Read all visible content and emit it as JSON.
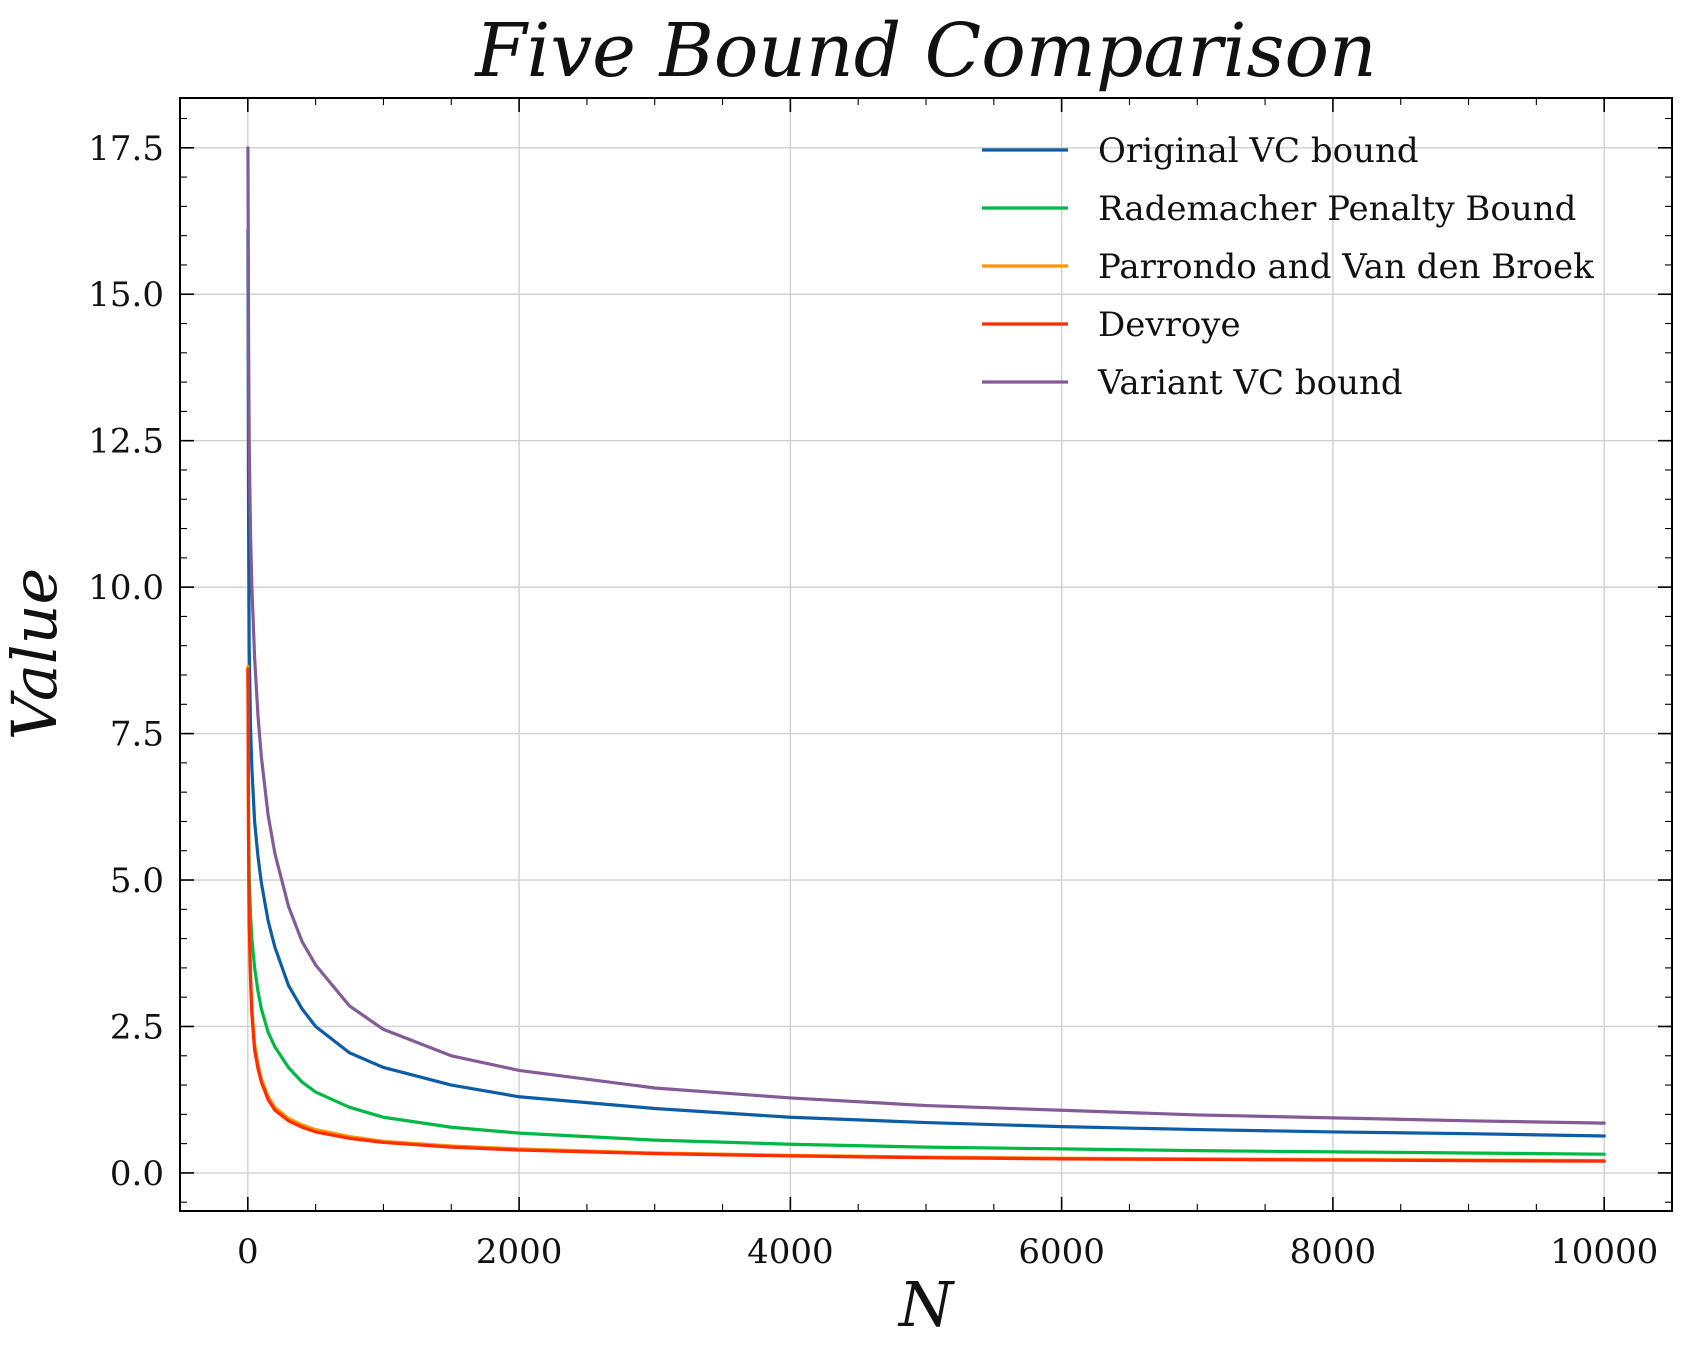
{
  "chart_data": {
    "type": "line",
    "title": "Five Bound Comparison",
    "xlabel": "N",
    "ylabel": "Value",
    "xlim": [
      -500,
      10500
    ],
    "ylim": [
      -0.65,
      18.35
    ],
    "x_ticks": [
      0,
      2000,
      4000,
      6000,
      8000,
      10000
    ],
    "x_tick_labels": [
      "0",
      "2000",
      "4000",
      "6000",
      "8000",
      "10000"
    ],
    "y_ticks": [
      0.0,
      2.5,
      5.0,
      7.5,
      10.0,
      12.5,
      15.0,
      17.5
    ],
    "y_tick_labels": [
      "0.0",
      "2.5",
      "5.0",
      "7.5",
      "10.0",
      "12.5",
      "15.0",
      "17.5"
    ],
    "grid": true,
    "legend_position": "top-right",
    "series": [
      {
        "name": "Original VC bound",
        "color": "#0C5DA5",
        "x": [
          1,
          5,
          10,
          20,
          30,
          50,
          75,
          100,
          150,
          200,
          300,
          400,
          500,
          750,
          1000,
          1500,
          2000,
          3000,
          4000,
          5000,
          6000,
          7000,
          8000,
          9000,
          10000
        ],
        "y": [
          16.1,
          11.5,
          9.0,
          7.6,
          6.9,
          6.0,
          5.4,
          4.95,
          4.3,
          3.85,
          3.2,
          2.8,
          2.5,
          2.05,
          1.8,
          1.5,
          1.3,
          1.1,
          0.95,
          0.86,
          0.79,
          0.74,
          0.7,
          0.67,
          0.63
        ]
      },
      {
        "name": "Rademacher Penalty Bound",
        "color": "#00B945",
        "x": [
          1,
          5,
          10,
          20,
          30,
          50,
          75,
          100,
          150,
          200,
          300,
          400,
          500,
          750,
          1000,
          1500,
          2000,
          3000,
          4000,
          5000,
          6000,
          7000,
          8000,
          9000,
          10000
        ],
        "y": [
          8.6,
          6.3,
          5.1,
          4.4,
          4.0,
          3.5,
          3.1,
          2.8,
          2.4,
          2.15,
          1.8,
          1.55,
          1.38,
          1.12,
          0.95,
          0.78,
          0.68,
          0.56,
          0.49,
          0.44,
          0.41,
          0.38,
          0.36,
          0.34,
          0.32
        ]
      },
      {
        "name": "Parrondo and Van den Broek",
        "color": "#FF9500",
        "x": [
          1,
          5,
          10,
          20,
          30,
          50,
          75,
          100,
          150,
          200,
          300,
          400,
          500,
          750,
          1000,
          1500,
          2000,
          3000,
          4000,
          5000,
          6000,
          7000,
          8000,
          9000,
          10000
        ],
        "y": [
          8.65,
          5.8,
          4.4,
          3.4,
          2.8,
          2.2,
          1.85,
          1.6,
          1.3,
          1.12,
          0.93,
          0.82,
          0.74,
          0.62,
          0.54,
          0.46,
          0.41,
          0.34,
          0.3,
          0.27,
          0.25,
          0.24,
          0.23,
          0.22,
          0.21
        ]
      },
      {
        "name": "Devroye",
        "color": "#FF2C00",
        "x": [
          1,
          5,
          10,
          20,
          30,
          50,
          75,
          100,
          150,
          200,
          300,
          400,
          500,
          750,
          1000,
          1500,
          2000,
          3000,
          4000,
          5000,
          6000,
          7000,
          8000,
          9000,
          10000
        ],
        "y": [
          8.6,
          5.7,
          4.3,
          3.3,
          2.7,
          2.1,
          1.78,
          1.55,
          1.25,
          1.07,
          0.89,
          0.78,
          0.7,
          0.59,
          0.52,
          0.44,
          0.39,
          0.33,
          0.29,
          0.26,
          0.24,
          0.23,
          0.22,
          0.21,
          0.2
        ]
      },
      {
        "name": "Variant VC bound",
        "color": "#845B97",
        "x": [
          1,
          5,
          10,
          20,
          30,
          50,
          75,
          100,
          150,
          200,
          300,
          400,
          500,
          750,
          1000,
          1500,
          2000,
          3000,
          4000,
          5000,
          6000,
          7000,
          8000,
          9000,
          10000
        ],
        "y": [
          17.5,
          14.5,
          12.5,
          10.9,
          10.0,
          8.8,
          7.8,
          7.1,
          6.1,
          5.45,
          4.55,
          3.95,
          3.55,
          2.85,
          2.45,
          2.0,
          1.75,
          1.45,
          1.28,
          1.15,
          1.07,
          0.99,
          0.94,
          0.89,
          0.85
        ]
      }
    ]
  }
}
